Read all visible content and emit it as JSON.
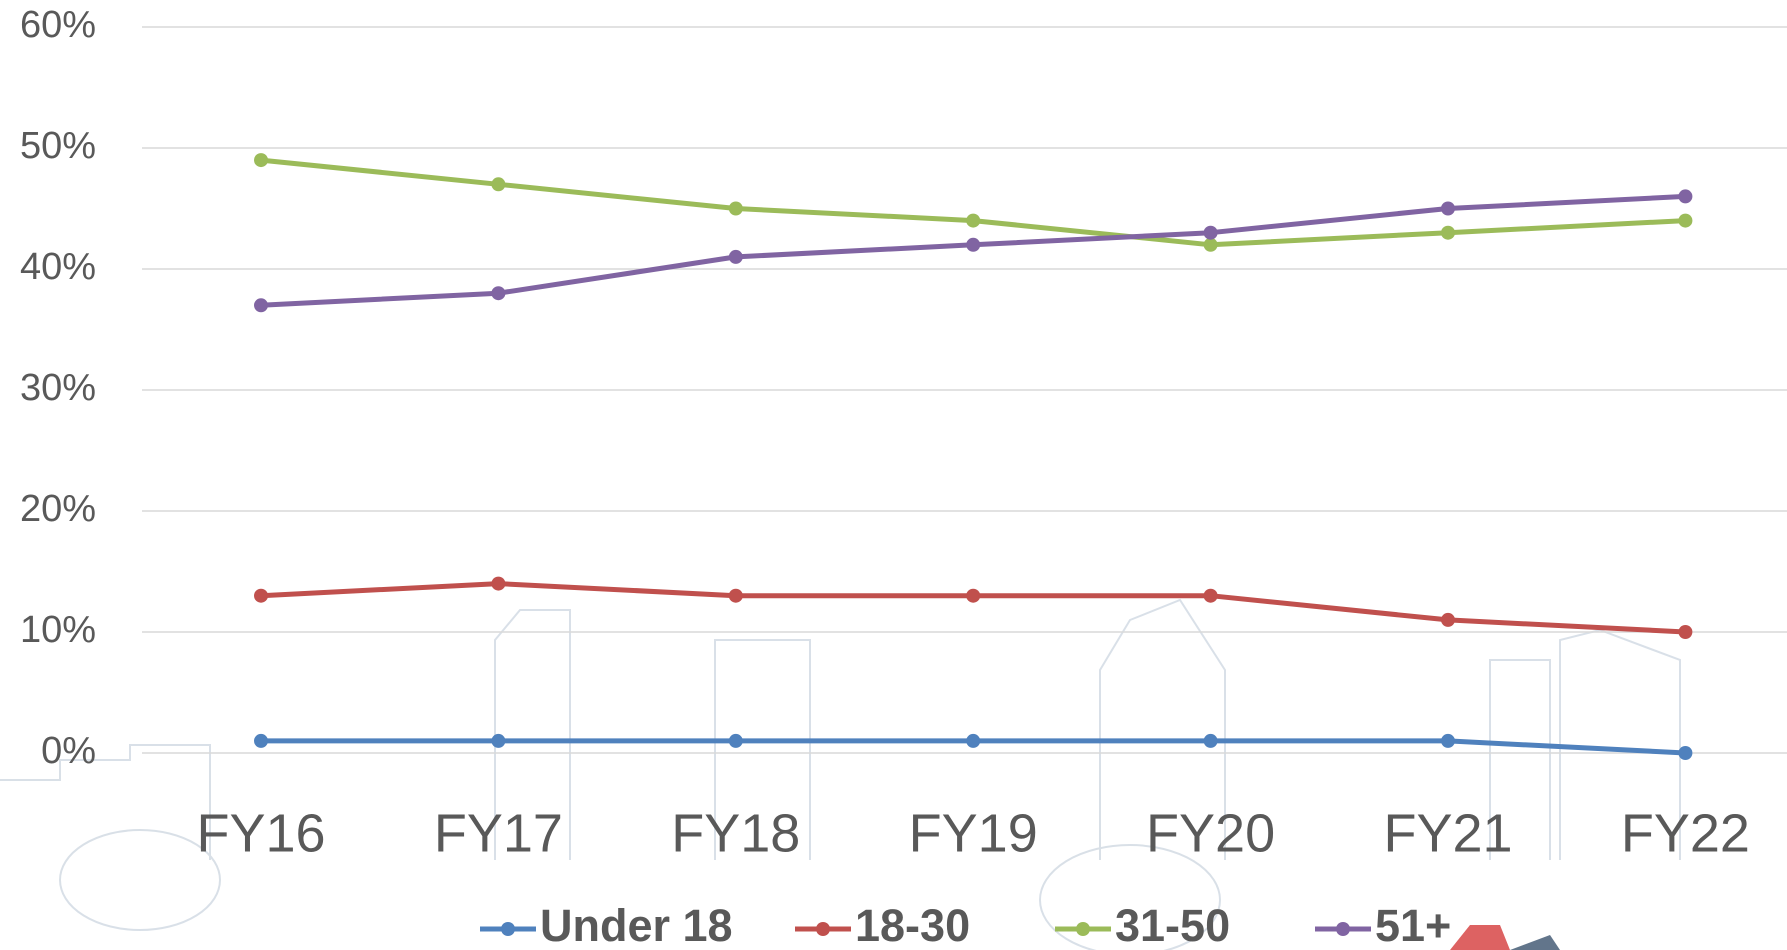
{
  "chart_data": {
    "type": "line",
    "categories": [
      "FY16",
      "FY17",
      "FY18",
      "FY19",
      "FY20",
      "FY21",
      "FY22"
    ],
    "series": [
      {
        "name": "Under 18",
        "color": "#4f81bd",
        "values": [
          1,
          1,
          1,
          1,
          1,
          1,
          0
        ]
      },
      {
        "name": "18-30",
        "color": "#c0504d",
        "values": [
          13,
          14,
          13,
          13,
          13,
          11,
          10
        ]
      },
      {
        "name": "31-50",
        "color": "#9bbb59",
        "values": [
          49,
          47,
          45,
          44,
          42,
          43,
          44
        ]
      },
      {
        "name": "51+",
        "color": "#8064a2",
        "values": [
          37,
          38,
          41,
          42,
          43,
          45,
          46
        ]
      }
    ],
    "ylim": [
      0,
      60
    ],
    "yticks": [
      {
        "value": 0,
        "label": "0%"
      },
      {
        "value": 10,
        "label": "10%"
      },
      {
        "value": 20,
        "label": "20%"
      },
      {
        "value": 30,
        "label": "30%"
      },
      {
        "value": 40,
        "label": "40%"
      },
      {
        "value": 50,
        "label": "50%"
      },
      {
        "value": 60,
        "label": "60%"
      }
    ],
    "grid": true,
    "legend": "bottom"
  }
}
